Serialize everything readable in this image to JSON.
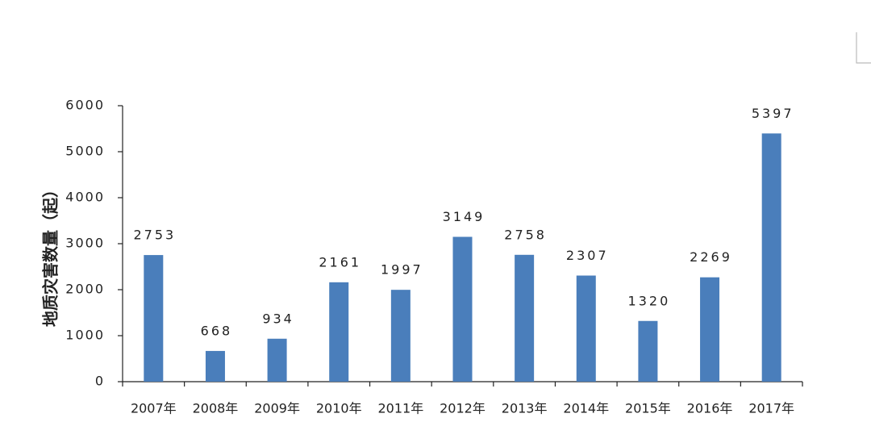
{
  "chart_data": {
    "type": "bar",
    "y_label": "地质灾害数量（起）",
    "categories": [
      "2007年",
      "2008年",
      "2009年",
      "2010年",
      "2011年",
      "2012年",
      "2013年",
      "2014年",
      "2015年",
      "2016年",
      "2017年"
    ],
    "values": [
      2753,
      668,
      934,
      2161,
      1997,
      3149,
      2758,
      2307,
      1320,
      2269,
      5397
    ],
    "color": "#4a7ebb",
    "ylim": [
      0,
      6000
    ],
    "yticks": [
      0,
      1000,
      2000,
      3000,
      4000,
      5000,
      6000
    ],
    "grid": false
  }
}
